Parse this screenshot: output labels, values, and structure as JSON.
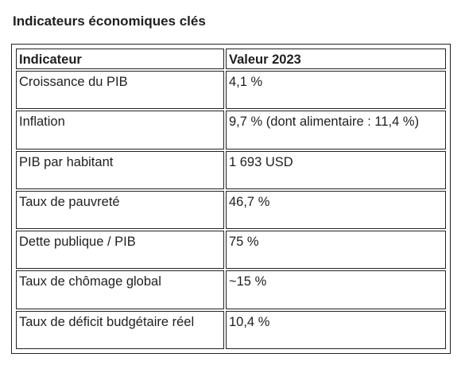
{
  "title": "Indicateurs économiques clés",
  "table": {
    "headers": [
      "Indicateur",
      "Valeur 2023"
    ],
    "rows": [
      [
        "Croissance du PIB",
        "4,1 %"
      ],
      [
        "Inflation",
        "9,7 % (dont alimentaire : 11,4 %)"
      ],
      [
        "PIB par habitant",
        "1 693 USD"
      ],
      [
        "Taux de pauvreté",
        "46,7 %"
      ],
      [
        "Dette publique / PIB",
        "75 %"
      ],
      [
        "Taux de chômage global",
        "~15 %"
      ],
      [
        "Taux de déficit budgétaire réel",
        "10,4 %"
      ]
    ]
  }
}
